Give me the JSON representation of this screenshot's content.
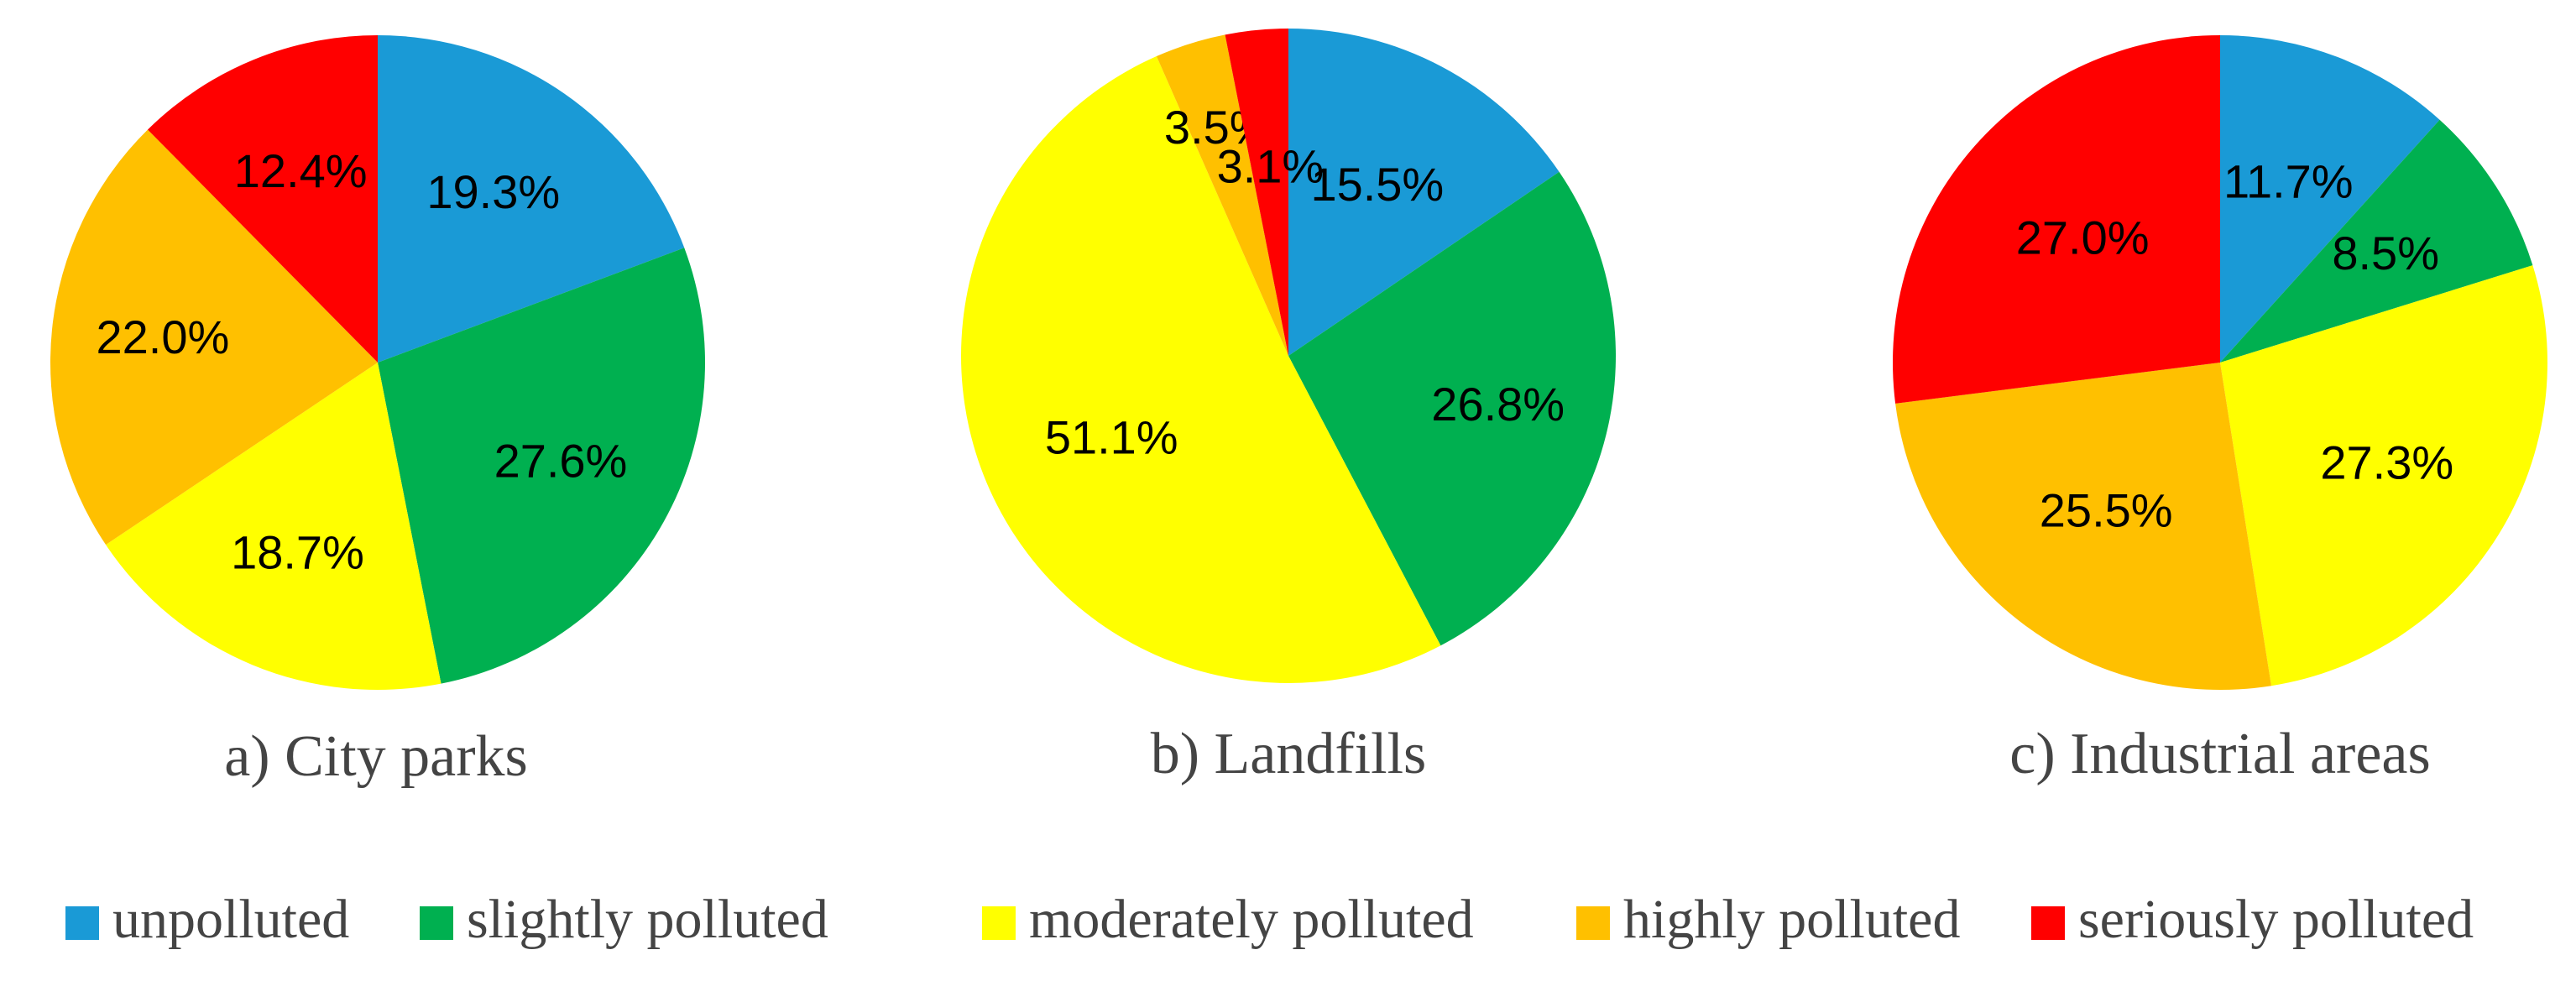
{
  "colors": {
    "unpolluted": "#1a9ad6",
    "slightly_polluted": "#00b050",
    "moderately_polluted": "#ffff00",
    "highly_polluted": "#ffc000",
    "seriously_polluted": "#ff0000"
  },
  "legend": [
    {
      "key": "unpolluted",
      "label": "unpolluted"
    },
    {
      "key": "slightly_polluted",
      "label": "slightly polluted"
    },
    {
      "key": "moderately_polluted",
      "label": "moderately polluted"
    },
    {
      "key": "highly_polluted",
      "label": "highly polluted"
    },
    {
      "key": "seriously_polluted",
      "label": "seriously polluted"
    }
  ],
  "legend_position": "bottom",
  "chart_data": [
    {
      "type": "pie",
      "title": "a) City parks",
      "categories": [
        "unpolluted",
        "slightly polluted",
        "moderately polluted",
        "highly polluted",
        "seriously polluted"
      ],
      "values": [
        19.3,
        27.6,
        18.7,
        22.0,
        12.4
      ],
      "labels": [
        "19.3%",
        "27.6%",
        "18.7%",
        "22.0%",
        "12.4%"
      ]
    },
    {
      "type": "pie",
      "title": "b) Landfills",
      "categories": [
        "unpolluted",
        "slightly polluted",
        "moderately polluted",
        "highly polluted",
        "seriously polluted"
      ],
      "values": [
        15.5,
        26.8,
        51.1,
        3.5,
        3.1
      ],
      "labels": [
        "15.5%",
        "26.8%",
        "51.1%",
        "3.5%",
        "3.1%"
      ]
    },
    {
      "type": "pie",
      "title": "c) Industrial areas",
      "categories": [
        "unpolluted",
        "slightly polluted",
        "moderately polluted",
        "highly polluted",
        "seriously polluted"
      ],
      "values": [
        11.7,
        8.5,
        27.3,
        25.5,
        27.0
      ],
      "labels": [
        "11.7%",
        "8.5%",
        "27.3%",
        "25.5%",
        "27.0%"
      ]
    }
  ]
}
